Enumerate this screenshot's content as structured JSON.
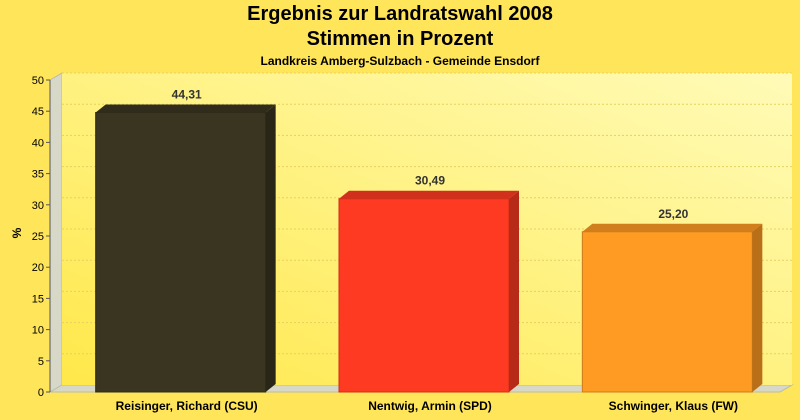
{
  "chart_data": {
    "type": "bar",
    "title": "Ergebnis zur Landratswahl 2008",
    "subtitle_line2": "Stimmen in Prozent",
    "subtitle": "Landkreis Amberg-Sulzbach - Gemeinde Ensdorf",
    "xlabel": "",
    "ylabel": "%",
    "ylim": [
      0,
      50
    ],
    "yticks": [
      0,
      5,
      10,
      15,
      20,
      25,
      30,
      35,
      40,
      45,
      50
    ],
    "grid": true,
    "categories": [
      "Reisinger, Richard (CSU)",
      "Nentwig, Armin (SPD)",
      "Schwinger, Klaus (FW)"
    ],
    "values": [
      44.31,
      30.49,
      25.2
    ],
    "value_labels": [
      "44,31",
      "30,49",
      "25,20"
    ],
    "colors": [
      "#3A3520",
      "#FF3A22",
      "#FF9A22"
    ]
  }
}
